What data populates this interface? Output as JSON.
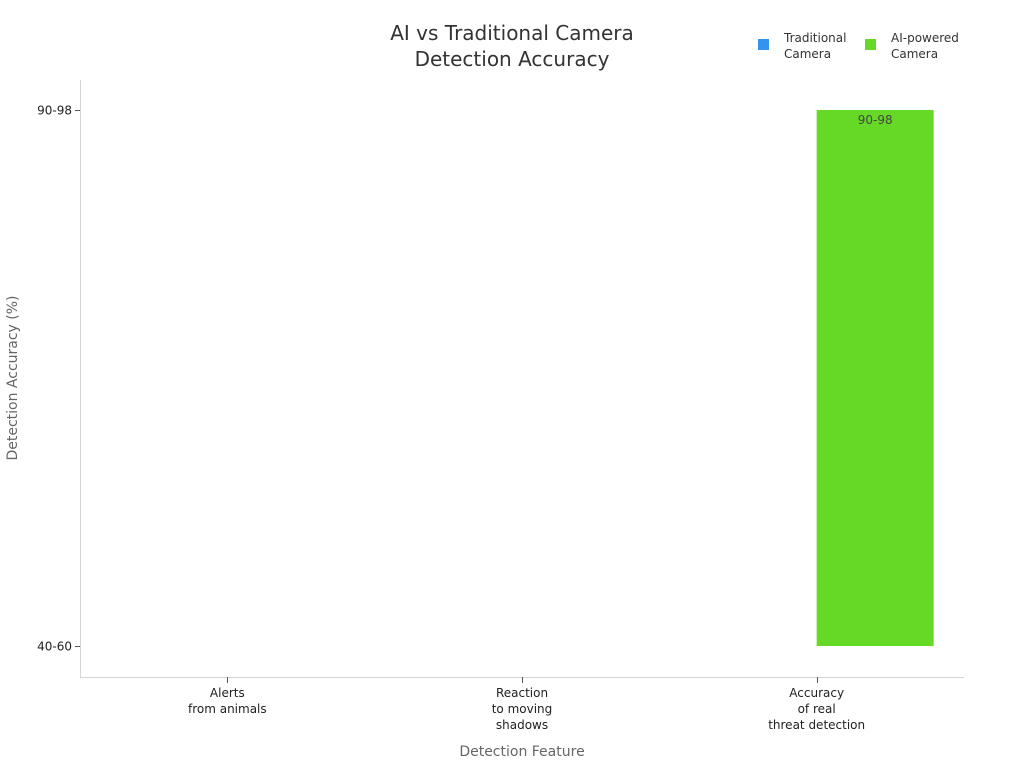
{
  "chart_data": {
    "type": "bar",
    "title": [
      "AI vs Traditional Camera",
      "Detection Accuracy"
    ],
    "xlabel": "Detection Feature",
    "ylabel": "Detection Accuracy (%)",
    "categories": [
      [
        "Alerts",
        "from animals"
      ],
      [
        "Reaction",
        "to moving",
        "shadows"
      ],
      [
        "Accuracy",
        "of real",
        "threat detection"
      ]
    ],
    "y_ticks": [
      "40-60",
      "90-98"
    ],
    "series": [
      {
        "name": [
          "Traditional",
          "Camera"
        ],
        "color": "#3592ef",
        "values": [
          null,
          null,
          null
        ]
      },
      {
        "name": [
          "AI-powered",
          "Camera"
        ],
        "color": "#66d927",
        "values": [
          null,
          null,
          {
            "from": "40-60",
            "to": "90-98"
          }
        ]
      }
    ],
    "data_labels": [
      {
        "series": 1,
        "category": 2,
        "text": "90-98"
      }
    ],
    "legend_position": "top-right",
    "grid": false
  }
}
